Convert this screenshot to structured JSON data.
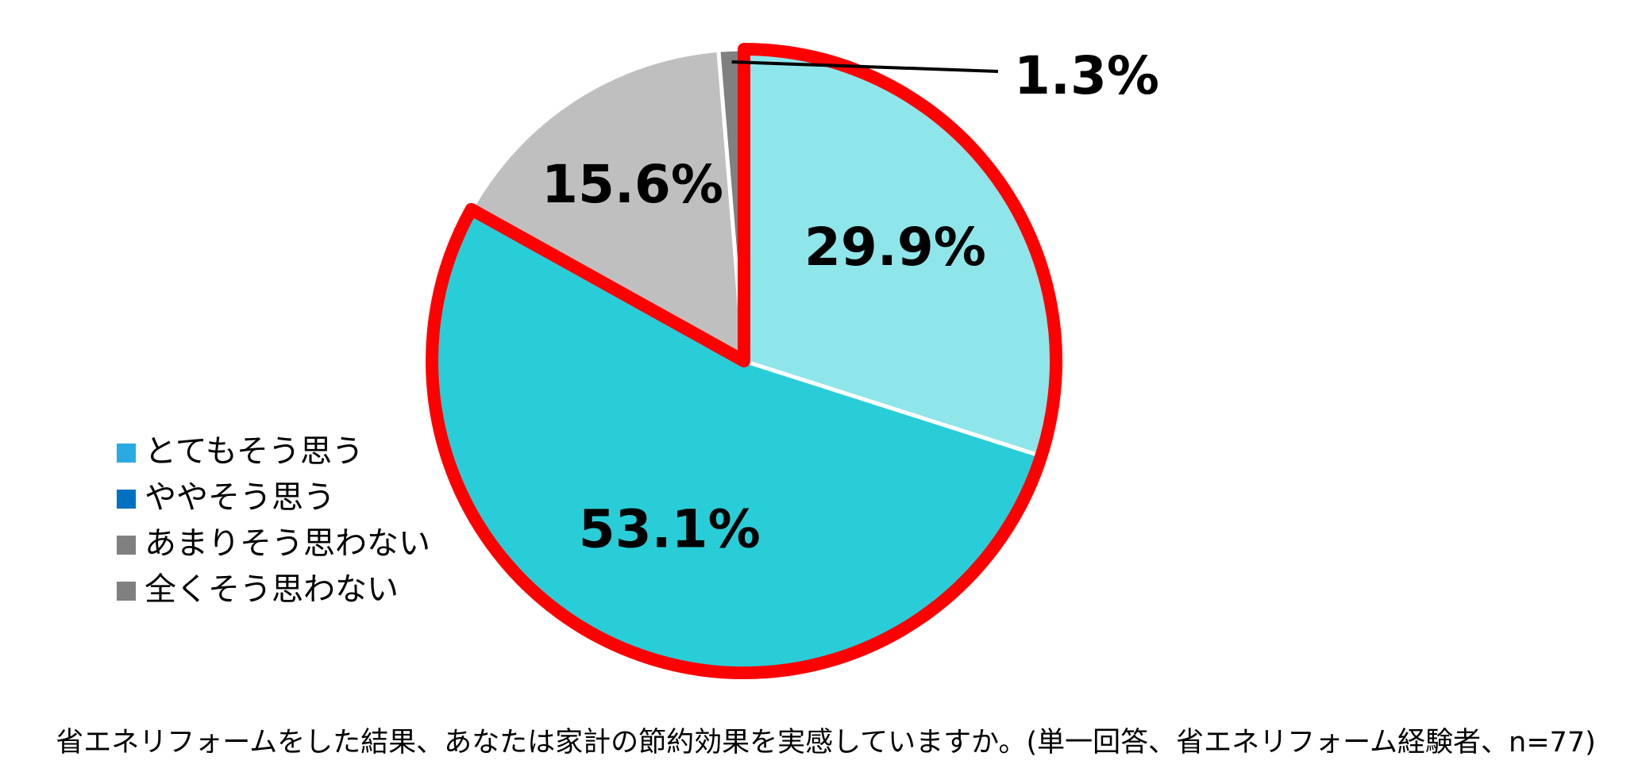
{
  "chart_data": {
    "type": "pie",
    "title": "省エネリフォームをした結果、あなたは家計の節約効果を実感していますか。(単一回答、省エネリフォーム経験者、n=77)",
    "categories": [
      "とてもそう思う",
      "ややそう思う",
      "あまりそう思わない",
      "全くそう思わない"
    ],
    "values": [
      29.9,
      53.1,
      15.6,
      1.3
    ],
    "value_labels": [
      "29.9%",
      "53.1%",
      "15.6%",
      "1.3%"
    ],
    "colors": [
      "#8EE6EA",
      "#29CDD8",
      "#BFBFBF",
      "#808080"
    ],
    "legend_colors": [
      "#29ABE2",
      "#0070C0",
      "#808080",
      "#808080"
    ],
    "highlight_slices": [
      0,
      1
    ],
    "highlight_color": "#FF0000",
    "legend": "left"
  }
}
